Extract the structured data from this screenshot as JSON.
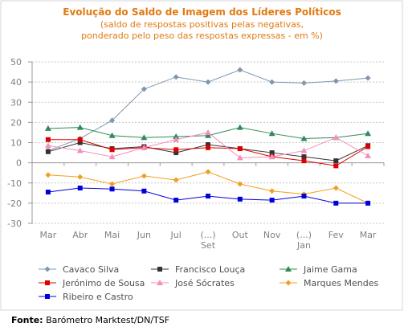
{
  "header": {
    "title": "Evolução do Saldo  de Imagem dos Líderes Políticos",
    "subtitle_line1": "(saldo de respostas positivas pelas negativas,",
    "subtitle_line2": "ponderado pelo peso das respostas expressas - em %)"
  },
  "footer": {
    "source_label": "Fonte:",
    "source_text": " Barómetro Marktest/DN/TSF"
  },
  "chart_data": {
    "type": "line",
    "categories": [
      "Mar",
      "Abr",
      "Mai",
      "Jun",
      "Jul",
      "(...) Set",
      "Out",
      "Nov",
      "(...) Jan",
      "Fev",
      "Mar"
    ],
    "category_lines": [
      [
        "Mar"
      ],
      [
        "Abr"
      ],
      [
        "Mai"
      ],
      [
        "Jun"
      ],
      [
        "Jul"
      ],
      [
        "(...)",
        "Set"
      ],
      [
        "Out"
      ],
      [
        "Nov"
      ],
      [
        "(...)",
        "Jan"
      ],
      [
        "Fev"
      ],
      [
        "Mar"
      ]
    ],
    "ylim": [
      -30,
      50
    ],
    "yticks": [
      -30,
      -20,
      -10,
      0,
      10,
      20,
      30,
      40,
      50
    ],
    "grid": true,
    "legend_position": "bottom",
    "series": [
      {
        "name": "Cavaco Silva",
        "color": "#7f97b0",
        "marker": "diamond",
        "values": [
          6,
          12,
          21,
          36.5,
          42.5,
          40,
          46,
          40,
          39.5,
          40.5,
          42
        ]
      },
      {
        "name": "Francisco Louça",
        "color": "#333333",
        "marker": "square",
        "values": [
          5.5,
          10,
          7,
          8,
          5,
          9,
          7,
          5,
          3,
          1,
          8.5
        ]
      },
      {
        "name": "Jaime Gama",
        "color": "#2e8b57",
        "marker": "triangle",
        "values": [
          17,
          17.5,
          13.5,
          12.5,
          13,
          13.5,
          17.5,
          14.5,
          12,
          12.5,
          14.5
        ]
      },
      {
        "name": "Jerónimo de Sousa",
        "color": "#dd0000",
        "marker": "square",
        "values": [
          11.5,
          11.5,
          6.5,
          7.5,
          6.5,
          7.5,
          7,
          3,
          1,
          -1.5,
          8
        ]
      },
      {
        "name": "José Sócrates",
        "color": "#f48fbd",
        "marker": "triangle",
        "values": [
          8.5,
          6,
          3,
          7.5,
          11.5,
          15,
          2.5,
          3,
          6,
          12.5,
          3.5
        ]
      },
      {
        "name": "Marques Mendes",
        "color": "#f0a020",
        "marker": "diamond",
        "values": [
          -6,
          -7,
          -10.5,
          -6.5,
          -8.5,
          -4.5,
          -10.5,
          -14,
          -15.5,
          -12.5,
          -20
        ]
      },
      {
        "name": "Ribeiro e Castro",
        "color": "#0000dd",
        "marker": "square",
        "values": [
          -14.5,
          -12.5,
          -13,
          -14,
          -18.5,
          -16.5,
          -18,
          -18.5,
          -16.5,
          -20,
          -20
        ]
      }
    ]
  }
}
